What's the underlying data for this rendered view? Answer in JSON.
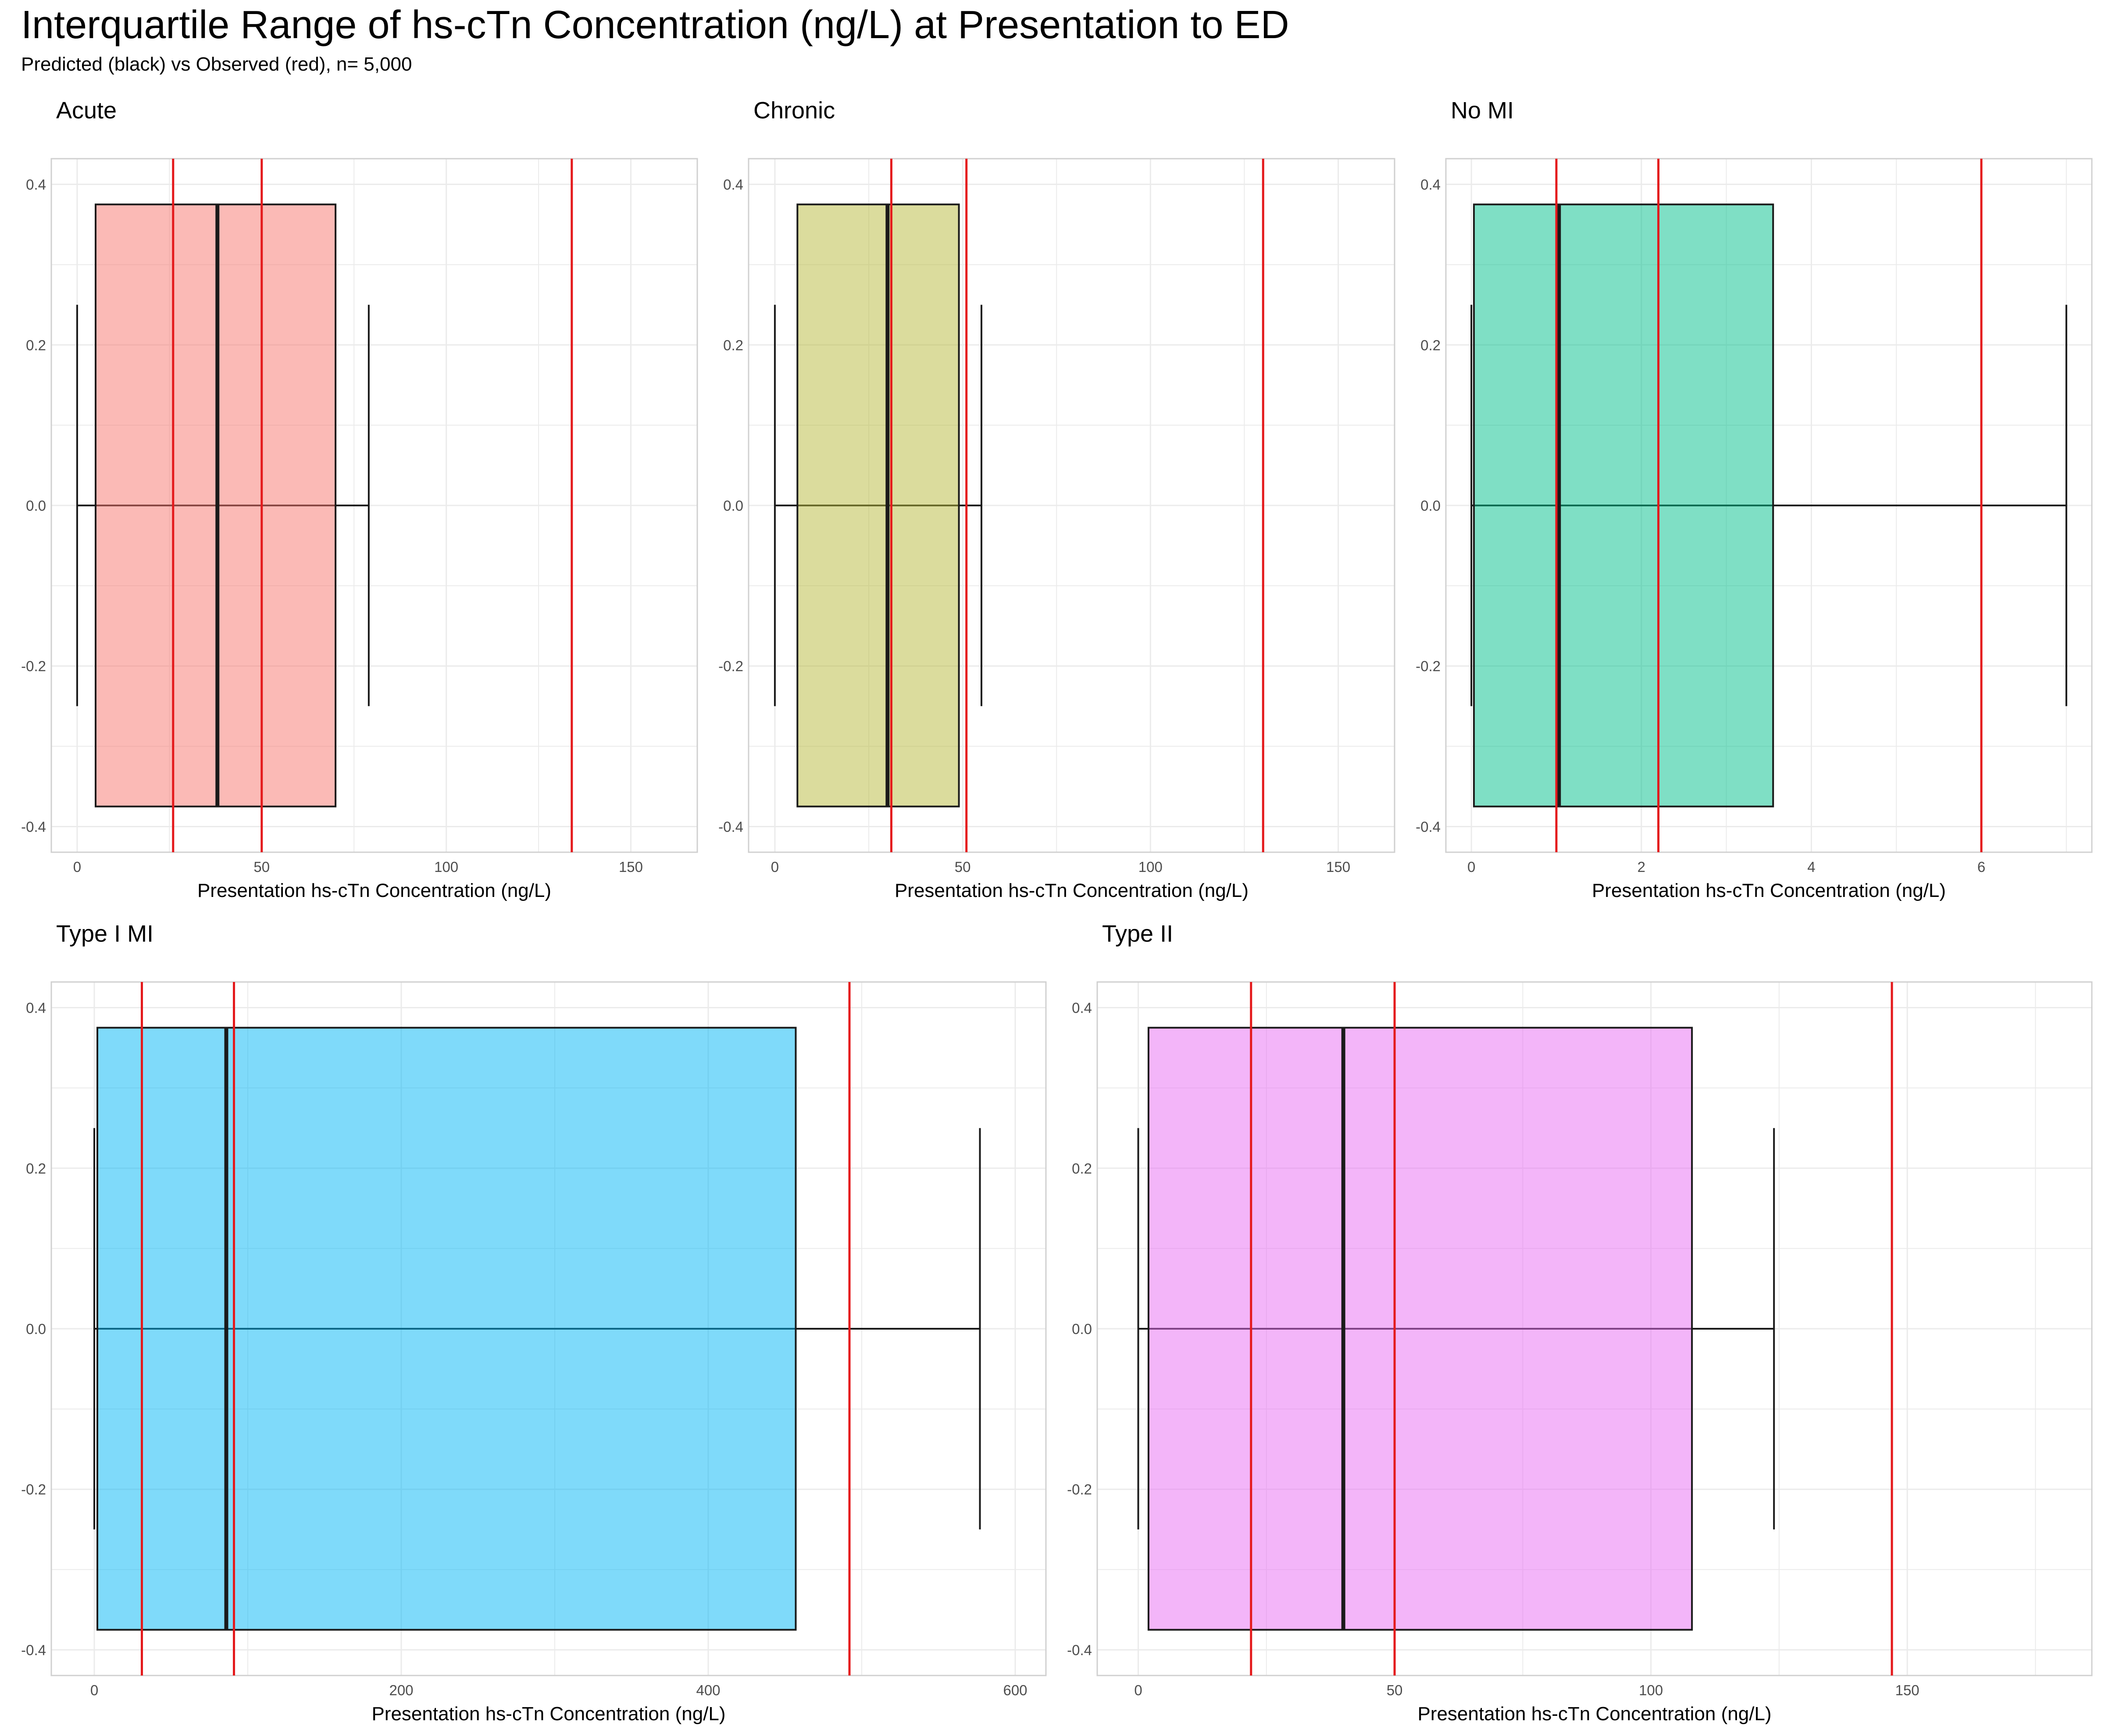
{
  "title": "Interquartile Range of hs-cTn Concentration (ng/L) at Presentation to ED",
  "subtitle": "Predicted (black) vs Observed (red), n= 5,000",
  "colors": {
    "observed_line": "#e41a1c",
    "predicted_stroke": "#1a1a1a",
    "grid": "#ebebeb",
    "panel_border": "#d0d0d0"
  },
  "chart_data": [
    {
      "type": "boxplot",
      "title": "Acute",
      "xlabel": "Presentation hs-cTn Concentration (ng/L)",
      "xlim": [
        -7,
        168
      ],
      "ylim": [
        -0.4,
        0.4
      ],
      "xticks": [
        0,
        50,
        100,
        150
      ],
      "xtick_labels": [
        "0",
        "50",
        "100",
        "150"
      ],
      "yticks": [
        0.4,
        0.2,
        0.0,
        -0.2,
        -0.4
      ],
      "ytick_labels": [
        "0.4",
        "0.2",
        "0.0",
        "-0.2",
        "-0.4"
      ],
      "fill": "#f8766d",
      "predicted": {
        "min": 0,
        "q1": 5,
        "median": 38,
        "q3": 70,
        "max": 79
      },
      "observed_lines": [
        26,
        50,
        134
      ],
      "grid": true
    },
    {
      "type": "boxplot",
      "title": "Chronic",
      "xlabel": "Presentation hs-cTn Concentration (ng/L)",
      "xlim": [
        -7,
        165
      ],
      "ylim": [
        -0.4,
        0.4
      ],
      "xticks": [
        0,
        50,
        100,
        150
      ],
      "xtick_labels": [
        "0",
        "50",
        "100",
        "150"
      ],
      "yticks": [
        0.4,
        0.2,
        0.0,
        -0.2,
        -0.4
      ],
      "ytick_labels": [
        "0.4",
        "0.2",
        "0.0",
        "-0.2",
        "-0.4"
      ],
      "fill": "#b8b93b",
      "predicted": {
        "min": 0,
        "q1": 6,
        "median": 30,
        "q3": 49,
        "max": 55
      },
      "observed_lines": [
        31,
        51,
        130
      ],
      "grid": true
    },
    {
      "type": "boxplot",
      "title": "No MI",
      "xlabel": "Presentation hs-cTn Concentration (ng/L)",
      "xlim": [
        -0.3,
        7.3
      ],
      "ylim": [
        -0.4,
        0.4
      ],
      "xticks": [
        0,
        2,
        4,
        6
      ],
      "xtick_labels": [
        "0",
        "2",
        "4",
        "6"
      ],
      "yticks": [
        0.4,
        0.2,
        0.0,
        -0.2,
        -0.4
      ],
      "ytick_labels": [
        "0.4",
        "0.2",
        "0.0",
        "-0.2",
        "-0.4"
      ],
      "fill": "#00c08b",
      "predicted": {
        "min": 0.0,
        "q1": 0.03,
        "median": 1.03,
        "q3": 3.55,
        "max": 7.0
      },
      "observed_lines": [
        1.0,
        2.2,
        6.0
      ],
      "grid": true
    },
    {
      "type": "boxplot",
      "title": "Type I MI",
      "xlabel": "Presentation hs-cTn Concentration (ng/L)",
      "xlim": [
        -28,
        620
      ],
      "ylim": [
        -0.4,
        0.4
      ],
      "xticks": [
        0,
        200,
        400,
        600
      ],
      "xtick_labels": [
        "0",
        "200",
        "400",
        "600"
      ],
      "yticks": [
        0.4,
        0.2,
        0.0,
        -0.2,
        -0.4
      ],
      "ytick_labels": [
        "0.4",
        "0.2",
        "0.0",
        "-0.2",
        "-0.4"
      ],
      "fill": "#00b5f5",
      "predicted": {
        "min": 0,
        "q1": 2,
        "median": 86,
        "q3": 457,
        "max": 577
      },
      "observed_lines": [
        31,
        91,
        492
      ],
      "grid": true
    },
    {
      "type": "boxplot",
      "title": "Type II",
      "xlabel": "Presentation hs-cTn Concentration (ng/L)",
      "xlim": [
        -8,
        186
      ],
      "ylim": [
        -0.4,
        0.4
      ],
      "xticks": [
        0,
        50,
        100,
        150
      ],
      "xtick_labels": [
        "0",
        "50",
        "100",
        "150"
      ],
      "yticks": [
        0.4,
        0.2,
        0.0,
        -0.2,
        -0.4
      ],
      "ytick_labels": [
        "0.4",
        "0.2",
        "0.0",
        "-0.2",
        "-0.4"
      ],
      "fill": "#e76bf3",
      "predicted": {
        "min": 0,
        "q1": 2,
        "median": 40,
        "q3": 108,
        "max": 124
      },
      "observed_lines": [
        22,
        50,
        147
      ],
      "grid": true
    }
  ]
}
